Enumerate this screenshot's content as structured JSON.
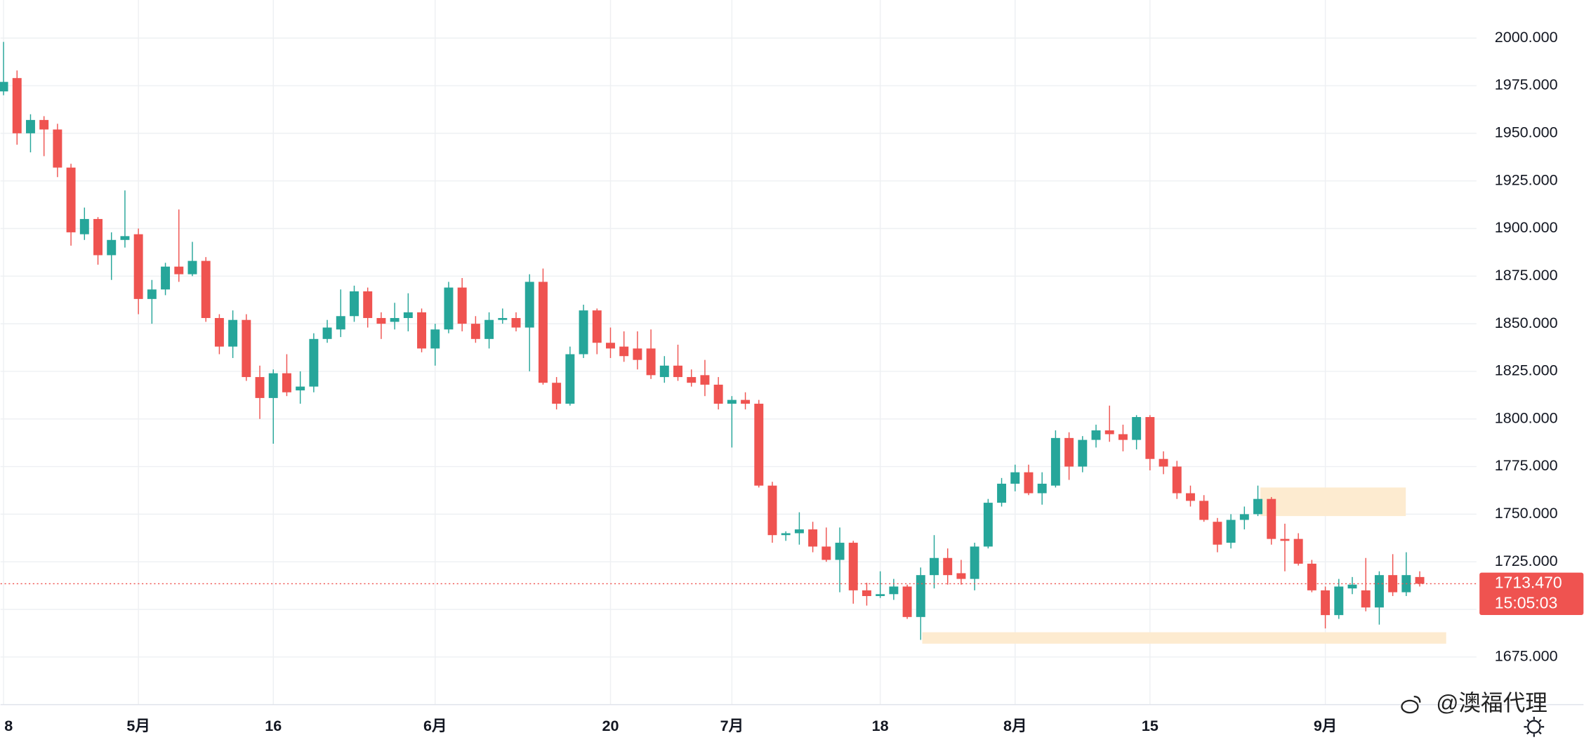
{
  "chart_data": {
    "type": "candlestick",
    "categories": [
      "8",
      null,
      null,
      null,
      null,
      null,
      null,
      null,
      null,
      null,
      "5月",
      null,
      null,
      null,
      null,
      null,
      null,
      null,
      null,
      null,
      "16",
      null,
      null,
      null,
      null,
      null,
      null,
      null,
      null,
      null,
      null,
      null,
      "6月",
      null,
      null,
      null,
      null,
      null,
      null,
      null,
      null,
      null,
      null,
      null,
      null,
      "20",
      null,
      null,
      null,
      null,
      null,
      null,
      null,
      null,
      "7月",
      null,
      null,
      null,
      null,
      null,
      null,
      null,
      null,
      null,
      null,
      "18",
      null,
      null,
      null,
      null,
      null,
      null,
      null,
      null,
      null,
      "8月",
      null,
      null,
      null,
      null,
      null,
      null,
      null,
      null,
      null,
      "15",
      null,
      null,
      null,
      null,
      null,
      null,
      null,
      null,
      null,
      null,
      null,
      null,
      "9月",
      null,
      null,
      null,
      null,
      null,
      null,
      null
    ],
    "open": [
      1972,
      1979,
      1950,
      1957,
      1952,
      1932,
      1897,
      1905,
      1886,
      1894,
      1897,
      1863,
      1868,
      1880,
      1876,
      1883,
      1853,
      1838,
      1852,
      1822,
      1811,
      1824,
      1815,
      1817,
      1842,
      1847,
      1854,
      1867,
      1853,
      1851,
      1853,
      1856,
      1837,
      1847,
      1869,
      1850,
      1842,
      1852,
      1853,
      1848,
      1872,
      1819,
      1808,
      1834,
      1857,
      1840,
      1838,
      1837,
      1837,
      1822,
      1828,
      1822,
      1823,
      1818,
      1808,
      1810,
      1808,
      1765,
      1739,
      1740,
      1742,
      1733,
      1726,
      1735,
      1710,
      1707,
      1708,
      1712,
      1696,
      1718,
      1727,
      1719,
      1716,
      1733,
      1756,
      1766,
      1772,
      1761,
      1765,
      1790,
      1775,
      1789,
      1794,
      1792,
      1789,
      1801,
      1779,
      1775,
      1761,
      1757,
      1746,
      1735,
      1747,
      1750,
      1758,
      1737,
      1737,
      1724,
      1710,
      1697,
      1711,
      1710,
      1701,
      1718,
      1709,
      1717
    ],
    "high": [
      1998,
      1983,
      1960,
      1959,
      1955,
      1934,
      1911,
      1906,
      1898,
      1920,
      1900,
      1873,
      1882,
      1910,
      1893,
      1885,
      1855,
      1857,
      1855,
      1828,
      1826,
      1834,
      1825,
      1845,
      1852,
      1868,
      1870,
      1869,
      1856,
      1861,
      1866,
      1858,
      1850,
      1872,
      1874,
      1854,
      1856,
      1858,
      1856,
      1876,
      1879,
      1822,
      1838,
      1860,
      1858,
      1848,
      1846,
      1846,
      1847,
      1833,
      1839,
      1826,
      1831,
      1822,
      1812,
      1814,
      1810,
      1767,
      1741,
      1751,
      1746,
      1743,
      1743,
      1736,
      1714,
      1720,
      1716,
      1713,
      1722,
      1739,
      1732,
      1726,
      1735,
      1758,
      1769,
      1776,
      1776,
      1772,
      1794,
      1793,
      1791,
      1797,
      1807,
      1797,
      1802,
      1802,
      1783,
      1778,
      1765,
      1760,
      1748,
      1750,
      1754,
      1765,
      1759,
      1745,
      1740,
      1726,
      1712,
      1716,
      1717,
      1727,
      1720,
      1729,
      1730,
      1720
    ],
    "low": [
      1970,
      1944,
      1940,
      1938,
      1927,
      1891,
      1894,
      1881,
      1873,
      1890,
      1855,
      1850,
      1865,
      1872,
      1875,
      1851,
      1834,
      1832,
      1820,
      1800,
      1787,
      1812,
      1808,
      1814,
      1840,
      1843,
      1851,
      1848,
      1842,
      1847,
      1846,
      1835,
      1828,
      1845,
      1846,
      1840,
      1837,
      1850,
      1846,
      1825,
      1818,
      1805,
      1807,
      1832,
      1834,
      1832,
      1830,
      1826,
      1821,
      1819,
      1820,
      1817,
      1812,
      1805,
      1785,
      1805,
      1764,
      1735,
      1736,
      1734,
      1730,
      1725,
      1709,
      1703,
      1702,
      1706,
      1705,
      1695,
      1684,
      1711,
      1713,
      1713,
      1710,
      1732,
      1754,
      1762,
      1760,
      1755,
      1764,
      1768,
      1772,
      1785,
      1788,
      1783,
      1784,
      1773,
      1771,
      1758,
      1754,
      1746,
      1730,
      1732,
      1742,
      1749,
      1734,
      1720,
      1723,
      1709,
      1690,
      1695,
      1708,
      1699,
      1692,
      1707,
      1707,
      1712
    ],
    "close": [
      1977,
      1950,
      1957,
      1952,
      1932,
      1898,
      1905,
      1886,
      1894,
      1896,
      1863,
      1868,
      1880,
      1876,
      1883,
      1853,
      1838,
      1852,
      1822,
      1811,
      1824,
      1814,
      1817,
      1842,
      1848,
      1854,
      1867,
      1853,
      1850,
      1853,
      1856,
      1837,
      1847,
      1869,
      1850,
      1842,
      1852,
      1853,
      1848,
      1872,
      1819,
      1808,
      1834,
      1857,
      1840,
      1837,
      1833,
      1831,
      1823,
      1828,
      1822,
      1819,
      1818,
      1808,
      1810,
      1808,
      1765,
      1739,
      1740,
      1742,
      1733,
      1726,
      1735,
      1710,
      1707,
      1708,
      1712,
      1696,
      1718,
      1727,
      1718,
      1716,
      1733,
      1756,
      1766,
      1772,
      1761,
      1766,
      1790,
      1775,
      1789,
      1794,
      1792,
      1789,
      1801,
      1779,
      1775,
      1761,
      1757,
      1747,
      1734,
      1747,
      1750,
      1758,
      1737,
      1736,
      1724,
      1710,
      1697,
      1712,
      1713,
      1701,
      1718,
      1709,
      1718,
      1713.47
    ],
    "up_color": "#26a69a",
    "down_color": "#ef5350",
    "ylim": [
      1650,
      2020
    ],
    "yticks": [
      {
        "value": 1675,
        "label": "1675.000"
      },
      {
        "value": 1700,
        "label": "1700.000"
      },
      {
        "value": 1725,
        "label": "1725.000"
      },
      {
        "value": 1750,
        "label": "1750.000"
      },
      {
        "value": 1775,
        "label": "1775.000"
      },
      {
        "value": 1800,
        "label": "1800.000"
      },
      {
        "value": 1825,
        "label": "1825.000"
      },
      {
        "value": 1850,
        "label": "1850.000"
      },
      {
        "value": 1875,
        "label": "1875.000"
      },
      {
        "value": 1900,
        "label": "1900.000"
      },
      {
        "value": 1925,
        "label": "1925.000"
      },
      {
        "value": 1950,
        "label": "1950.000"
      },
      {
        "value": 1975,
        "label": "1975.000"
      },
      {
        "value": 2000,
        "label": "2000.000"
      }
    ],
    "grid": true,
    "zones": [
      {
        "low": 1749,
        "high": 1764,
        "color": "#fdebd0"
      },
      {
        "low": 1682,
        "high": 1688,
        "color": "#fdebd0"
      }
    ],
    "price_tag": {
      "value": 1713.47,
      "label": "1713.470",
      "countdown": "15:05:03",
      "color": "#ef5350"
    }
  },
  "watermark": "@澳福代理"
}
